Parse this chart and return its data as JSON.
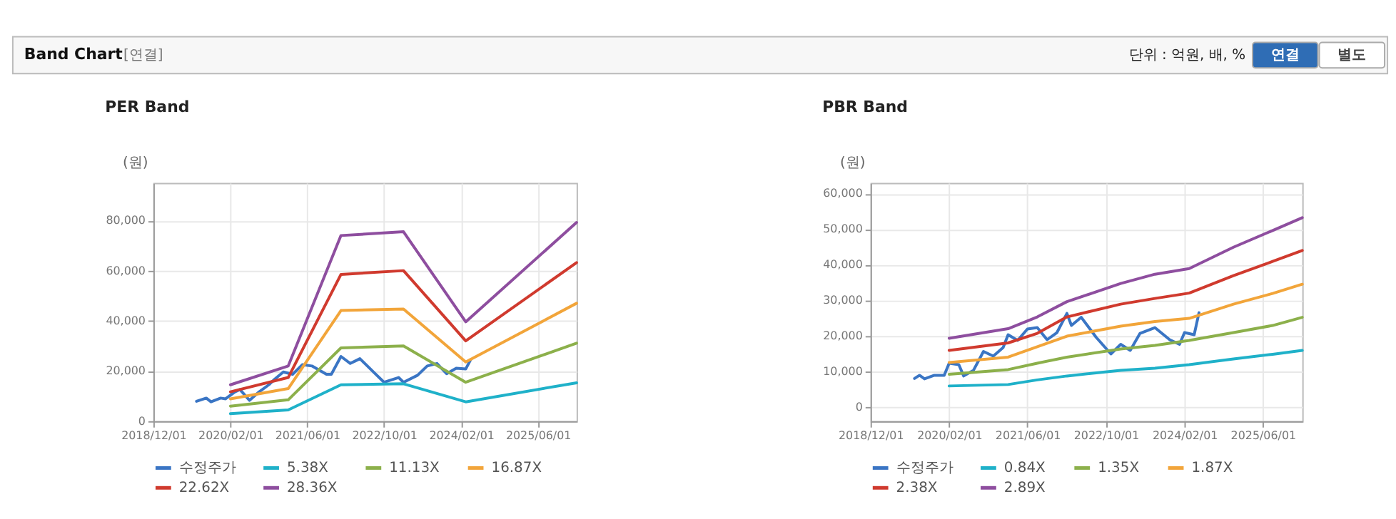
{
  "chart_data": [
    {
      "type": "line",
      "title": "PER Band",
      "ylabel": "(원)",
      "annotations": [
        "Band Chart",
        "[연결]",
        "단위 : 억원, 배, %",
        "연결",
        "별도"
      ],
      "xlim": [
        "2018-10-01",
        "2026-02-01"
      ],
      "xticks": [
        {
          "value": "2018-10-01",
          "label": "2018/12/01"
        },
        {
          "value": "2020-02-01",
          "label": "2020/02/01"
        },
        {
          "value": "2021-06-01",
          "label": "2021/06/01"
        },
        {
          "value": "2022-10-01",
          "label": "2022/10/01"
        },
        {
          "value": "2024-02-01",
          "label": "2024/02/01"
        },
        {
          "value": "2025-06-01",
          "label": "2025/06/01"
        }
      ],
      "ylim": [
        0,
        95000
      ],
      "yticks": [
        {
          "value": 0,
          "label": "0"
        },
        {
          "value": 20000,
          "label": "20,000"
        },
        {
          "value": 40000,
          "label": "40,000"
        },
        {
          "value": 60000,
          "label": "60,000"
        },
        {
          "value": 80000,
          "label": "80,000"
        }
      ],
      "grid": true,
      "legend": "bottom",
      "marker": "none",
      "line_style": "solid",
      "series": [
        {
          "name": "수정주가",
          "color": "#3a75c4",
          "x": [
            "2019-07-01",
            "2019-09-01",
            "2019-10-01",
            "2019-12-01",
            "2020-01-01",
            "2020-03-01",
            "2020-04-01",
            "2020-06-01",
            "2020-08-01",
            "2020-10-01",
            "2020-11-01",
            "2021-01-01",
            "2021-03-01",
            "2021-05-01",
            "2021-07-01",
            "2021-10-01",
            "2021-11-01",
            "2022-01-01",
            "2022-03-01",
            "2022-05-01",
            "2022-08-01",
            "2022-10-01",
            "2023-01-01",
            "2023-02-01",
            "2023-05-01",
            "2023-07-01",
            "2023-09-01",
            "2023-11-01",
            "2024-01-01",
            "2024-03-01",
            "2024-04-01"
          ],
          "values": [
            7900,
            9200,
            7700,
            9200,
            8900,
            11700,
            12600,
            8300,
            11700,
            14500,
            16400,
            19600,
            18700,
            22500,
            22000,
            18700,
            18700,
            25800,
            23000,
            24900,
            19200,
            15500,
            17400,
            15500,
            18300,
            22000,
            23000,
            18900,
            21100,
            20800,
            24500
          ]
        },
        {
          "name": "5.38X",
          "color": "#1fb1c9",
          "x": [
            "2020-02-01",
            "2021-02-01",
            "2022-01-01",
            "2023-02-01",
            "2024-03-01",
            "2026-02-01"
          ],
          "values": [
            3000,
            4500,
            14500,
            14900,
            7700,
            15300
          ]
        },
        {
          "name": "11.13X",
          "color": "#8cb04b",
          "x": [
            "2020-02-01",
            "2021-02-01",
            "2022-01-01",
            "2023-02-01",
            "2024-03-01",
            "2026-02-01"
          ],
          "values": [
            6000,
            8500,
            29200,
            30000,
            15500,
            31100
          ]
        },
        {
          "name": "16.87X",
          "color": "#f2a53a",
          "x": [
            "2020-02-01",
            "2021-02-01",
            "2022-01-01",
            "2023-02-01",
            "2024-03-01",
            "2026-02-01"
          ],
          "values": [
            8900,
            13000,
            44100,
            44700,
            23600,
            47000
          ]
        },
        {
          "name": "22.62X",
          "color": "#d03a2e",
          "x": [
            "2020-02-01",
            "2021-02-01",
            "2022-01-01",
            "2023-02-01",
            "2024-03-01",
            "2026-02-01"
          ],
          "values": [
            11700,
            17400,
            58500,
            60000,
            32000,
            63200
          ]
        },
        {
          "name": "28.36X",
          "color": "#8e4e9f",
          "x": [
            "2020-02-01",
            "2021-02-01",
            "2022-01-01",
            "2023-02-01",
            "2024-03-01",
            "2026-02-01"
          ],
          "values": [
            14500,
            22000,
            74000,
            75500,
            39600,
            79200
          ]
        }
      ]
    },
    {
      "type": "line",
      "title": "PBR Band",
      "ylabel": "(원)",
      "xlim": [
        "2018-10-01",
        "2026-02-01"
      ],
      "xticks": [
        {
          "value": "2018-10-01",
          "label": "2018/12/01"
        },
        {
          "value": "2020-02-01",
          "label": "2020/02/01"
        },
        {
          "value": "2021-06-01",
          "label": "2021/06/01"
        },
        {
          "value": "2022-10-01",
          "label": "2022/10/01"
        },
        {
          "value": "2024-02-01",
          "label": "2024/02/01"
        },
        {
          "value": "2025-06-01",
          "label": "2025/06/01"
        }
      ],
      "ylim": [
        -4000,
        63000
      ],
      "yticks": [
        {
          "value": 0,
          "label": "0"
        },
        {
          "value": 10000,
          "label": "10,000"
        },
        {
          "value": 20000,
          "label": "20,000"
        },
        {
          "value": 30000,
          "label": "30,000"
        },
        {
          "value": 40000,
          "label": "40,000"
        },
        {
          "value": 50000,
          "label": "50,000"
        },
        {
          "value": 60000,
          "label": "60,000"
        }
      ],
      "grid": true,
      "legend": "bottom",
      "marker": "none",
      "line_style": "solid",
      "series": [
        {
          "name": "수정주가",
          "color": "#3a75c4",
          "x": [
            "2019-07-01",
            "2019-08-01",
            "2019-09-01",
            "2019-11-01",
            "2020-01-01",
            "2020-02-01",
            "2020-04-01",
            "2020-05-01",
            "2020-07-01",
            "2020-09-01",
            "2020-11-01",
            "2021-01-01",
            "2021-02-01",
            "2021-04-01",
            "2021-06-01",
            "2021-08-01",
            "2021-10-01",
            "2021-12-01",
            "2022-02-01",
            "2022-03-01",
            "2022-05-01",
            "2022-08-01",
            "2022-11-01",
            "2023-01-01",
            "2023-03-01",
            "2023-05-01",
            "2023-08-01",
            "2023-11-01",
            "2024-01-01",
            "2024-02-01",
            "2024-04-01",
            "2024-05-01"
          ],
          "values": [
            8000,
            8900,
            7900,
            8900,
            8900,
            12300,
            11900,
            8700,
            10300,
            15600,
            14300,
            16700,
            20300,
            18700,
            21900,
            22300,
            18900,
            20900,
            26300,
            22900,
            25200,
            19600,
            14900,
            17600,
            15900,
            20700,
            22300,
            18900,
            17600,
            20900,
            20300,
            26500
          ]
        },
        {
          "name": "0.84X",
          "color": "#1fb1c9",
          "x": [
            "2020-02-01",
            "2021-02-01",
            "2021-08-01",
            "2022-02-01",
            "2023-01-01",
            "2023-08-01",
            "2024-03-01",
            "2024-12-01",
            "2025-08-01",
            "2026-02-01"
          ],
          "values": [
            5900,
            6300,
            7600,
            8700,
            10300,
            10900,
            11900,
            13500,
            14800,
            15900
          ]
        },
        {
          "name": "1.35X",
          "color": "#8cb04b",
          "x": [
            "2020-02-01",
            "2021-02-01",
            "2021-08-01",
            "2022-02-01",
            "2023-01-01",
            "2023-08-01",
            "2024-03-01",
            "2024-12-01",
            "2025-08-01",
            "2026-02-01"
          ],
          "values": [
            9200,
            10500,
            12300,
            14000,
            16300,
            17300,
            18700,
            20900,
            22900,
            25200
          ]
        },
        {
          "name": "1.87X",
          "color": "#f2a53a",
          "x": [
            "2020-02-01",
            "2021-02-01",
            "2021-08-01",
            "2022-02-01",
            "2023-01-01",
            "2023-08-01",
            "2024-03-01",
            "2024-12-01",
            "2025-08-01",
            "2026-02-01"
          ],
          "values": [
            12500,
            14000,
            16900,
            19900,
            22700,
            24000,
            24900,
            28900,
            31900,
            34500
          ]
        },
        {
          "name": "2.38X",
          "color": "#d03a2e",
          "x": [
            "2020-02-01",
            "2021-02-01",
            "2021-08-01",
            "2022-02-01",
            "2023-01-01",
            "2023-08-01",
            "2024-03-01",
            "2024-12-01",
            "2025-08-01",
            "2026-02-01"
          ],
          "values": [
            15900,
            18000,
            20700,
            25300,
            28900,
            30500,
            32000,
            36900,
            40900,
            44000
          ]
        },
        {
          "name": "2.89X",
          "color": "#8e4e9f",
          "x": [
            "2020-02-01",
            "2021-02-01",
            "2021-08-01",
            "2022-02-01",
            "2023-01-01",
            "2023-08-01",
            "2024-03-01",
            "2024-12-01",
            "2025-08-01",
            "2026-02-01"
          ],
          "values": [
            19300,
            22000,
            25300,
            29600,
            34700,
            37300,
            38900,
            44900,
            49600,
            53200
          ]
        }
      ]
    }
  ]
}
